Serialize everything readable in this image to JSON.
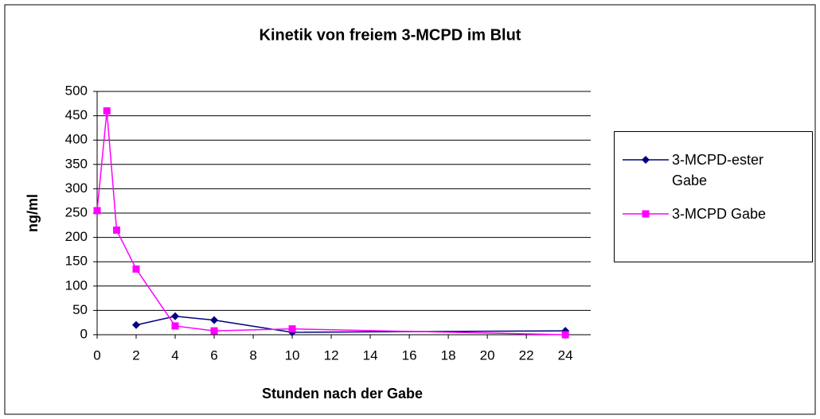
{
  "chart_data": {
    "type": "line",
    "title": "Kinetik von freiem 3-MCPD im Blut",
    "x_label": "Stunden nach der Gabe",
    "y_label": "ng/ml",
    "series": [
      {
        "name": "3-MCPD-ester Gabe",
        "color": "#000080",
        "marker": "diamond",
        "x": [
          2,
          4,
          6,
          10,
          24
        ],
        "values": [
          20,
          38,
          30,
          5,
          8
        ]
      },
      {
        "name": "3-MCPD Gabe",
        "color": "#ff00ff",
        "marker": "square",
        "x": [
          0,
          0.5,
          1,
          2,
          4,
          6,
          10,
          24
        ],
        "values": [
          255,
          460,
          215,
          135,
          18,
          8,
          12,
          0
        ]
      }
    ],
    "xlim": [
      0,
      25.3
    ],
    "xticks": [
      0,
      2,
      4,
      6,
      8,
      10,
      12,
      14,
      16,
      18,
      20,
      22,
      24
    ],
    "ylim": [
      0,
      500
    ],
    "yticks": [
      0,
      50,
      100,
      150,
      200,
      250,
      300,
      350,
      400,
      450,
      500
    ],
    "grid": true,
    "legend": "right"
  }
}
